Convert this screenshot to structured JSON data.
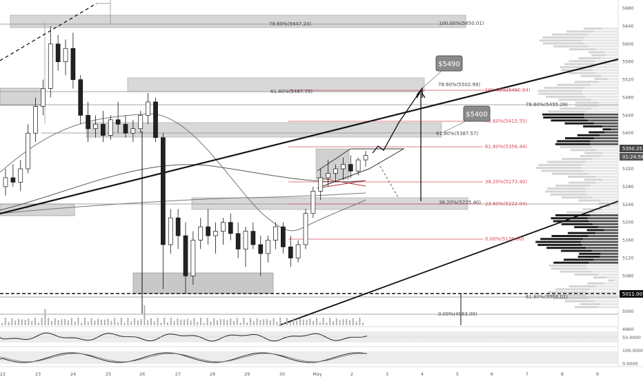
{
  "chart_data": {
    "type": "candlestick",
    "timeframe_axis": [
      "22",
      "23",
      "24",
      "25",
      "26",
      "27",
      "28",
      "29",
      "30",
      "May",
      "2",
      "3",
      "4",
      "5",
      "6",
      "7",
      "8",
      "9"
    ],
    "price_axis": [
      5680,
      5640,
      5600,
      5560,
      5520,
      5480,
      5440,
      5400,
      5360,
      5320,
      5280,
      5240,
      5200,
      5160,
      5120,
      5080,
      5040,
      5000,
      4960
    ],
    "current_price": "5350.25",
    "countdown": "01:24:58",
    "support_level": "5011.00",
    "fib_labels_gray": [
      "78.60%(5647.24)",
      "100.00%(5650.01)",
      "61.80%(5487.75)",
      "78.60%(5502.99)",
      "78.60%(5455.28)",
      "61.80%(5387.57)",
      "38.20%(5225.40)",
      "61.80%(5004.01)",
      "0.00%(4963.00)"
    ],
    "fib_labels_red": [
      "100.00%(5490.84)",
      "78.60%(5415.55)",
      "61.80%(5356.44)",
      "38.20%(5273.40)",
      "23.60%(5222.04)",
      "0.00%(5139.00)"
    ],
    "callouts": [
      "$5490",
      "$5400"
    ],
    "rsi_axis": [
      "50.0000"
    ],
    "stoch_axis": [
      "100.0000",
      "0.0000"
    ],
    "candles": [
      [
        0,
        5280,
        5320,
        5260,
        5300
      ],
      [
        1,
        5300,
        5330,
        5280,
        5290
      ],
      [
        2,
        5290,
        5340,
        5270,
        5320
      ],
      [
        3,
        5320,
        5420,
        5310,
        5400
      ],
      [
        4,
        5400,
        5480,
        5380,
        5460
      ],
      [
        5,
        5460,
        5520,
        5440,
        5500
      ],
      [
        6,
        5500,
        5640,
        5480,
        5600
      ],
      [
        7,
        5600,
        5620,
        5540,
        5560
      ],
      [
        8,
        5560,
        5610,
        5530,
        5590
      ],
      [
        9,
        5590,
        5625,
        5500,
        5520
      ],
      [
        10,
        5520,
        5530,
        5420,
        5440
      ],
      [
        11,
        5440,
        5470,
        5380,
        5410
      ],
      [
        12,
        5410,
        5440,
        5390,
        5420
      ],
      [
        13,
        5420,
        5450,
        5380,
        5395
      ],
      [
        14,
        5395,
        5440,
        5385,
        5430
      ],
      [
        15,
        5430,
        5470,
        5400,
        5420
      ],
      [
        16,
        5420,
        5440,
        5390,
        5400
      ],
      [
        17,
        5400,
        5430,
        5380,
        5410
      ],
      [
        18,
        5410,
        5450,
        5400,
        5440
      ],
      [
        19,
        5440,
        5490,
        5420,
        5470
      ],
      [
        20,
        5470,
        5480,
        5380,
        5390
      ],
      [
        21,
        5390,
        5400,
        5050,
        5150
      ],
      [
        22,
        5150,
        5230,
        5130,
        5210
      ],
      [
        23,
        5210,
        5230,
        5140,
        5170
      ],
      [
        24,
        5170,
        5200,
        5040,
        5080
      ],
      [
        25,
        5080,
        5180,
        5060,
        5160
      ],
      [
        26,
        5160,
        5210,
        5140,
        5190
      ],
      [
        27,
        5190,
        5230,
        5150,
        5170
      ],
      [
        28,
        5170,
        5200,
        5130,
        5180
      ],
      [
        29,
        5180,
        5210,
        5150,
        5200
      ],
      [
        30,
        5200,
        5220,
        5160,
        5175
      ],
      [
        31,
        5175,
        5200,
        5120,
        5140
      ],
      [
        32,
        5140,
        5190,
        5100,
        5180
      ],
      [
        33,
        5180,
        5200,
        5140,
        5150
      ],
      [
        34,
        5150,
        5170,
        5080,
        5130
      ],
      [
        35,
        5130,
        5170,
        5110,
        5160
      ],
      [
        36,
        5160,
        5200,
        5140,
        5190
      ],
      [
        37,
        5190,
        5200,
        5130,
        5145
      ],
      [
        38,
        5145,
        5170,
        5100,
        5120
      ],
      [
        39,
        5120,
        5160,
        5110,
        5150
      ],
      [
        40,
        5150,
        5230,
        5140,
        5220
      ],
      [
        41,
        5220,
        5280,
        5210,
        5270
      ],
      [
        42,
        5270,
        5320,
        5250,
        5300
      ],
      [
        43,
        5300,
        5340,
        5280,
        5310
      ],
      [
        44,
        5310,
        5330,
        5290,
        5320
      ],
      [
        45,
        5320,
        5345,
        5295,
        5330
      ],
      [
        46,
        5330,
        5350,
        5300,
        5315
      ],
      [
        47,
        5315,
        5345,
        5305,
        5340
      ],
      [
        48,
        5340,
        5360,
        5325,
        5350
      ]
    ]
  }
}
